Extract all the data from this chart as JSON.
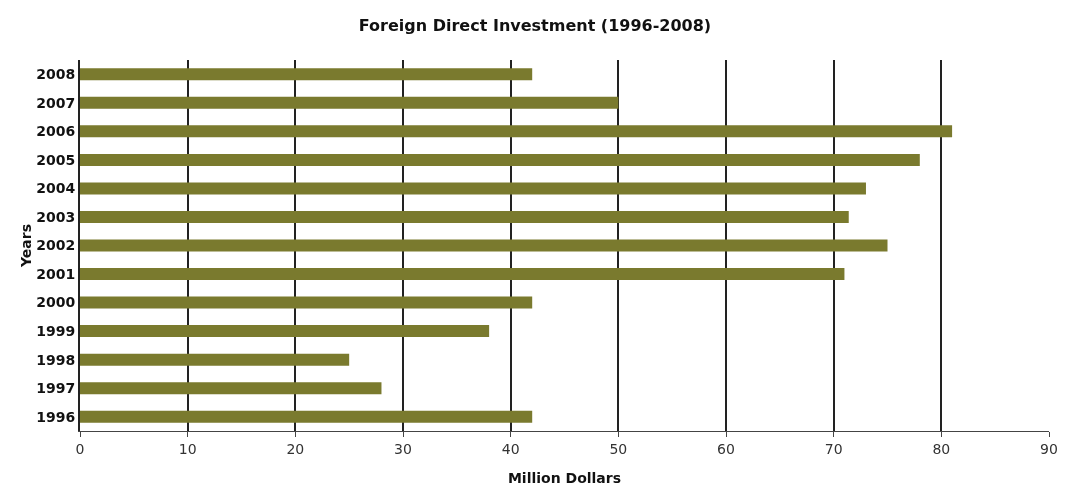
{
  "chart_data": {
    "type": "bar",
    "orientation": "horizontal",
    "title": "Foreign Direct Investment (1996-2008)",
    "xlabel": "Million Dollars",
    "ylabel": "Years",
    "categories": [
      "2008",
      "2007",
      "2006",
      "2005",
      "2004",
      "2003",
      "2002",
      "2001",
      "2000",
      "1999",
      "1998",
      "1997",
      "1996"
    ],
    "values": [
      42,
      50,
      81,
      78,
      73,
      71.4,
      75,
      71,
      42,
      38,
      25,
      28,
      42
    ],
    "color": "#7a7a2e",
    "xlim": [
      0,
      90
    ],
    "xticks": [
      0,
      10,
      20,
      30,
      40,
      50,
      60,
      70,
      80,
      90
    ],
    "grid": "x"
  }
}
